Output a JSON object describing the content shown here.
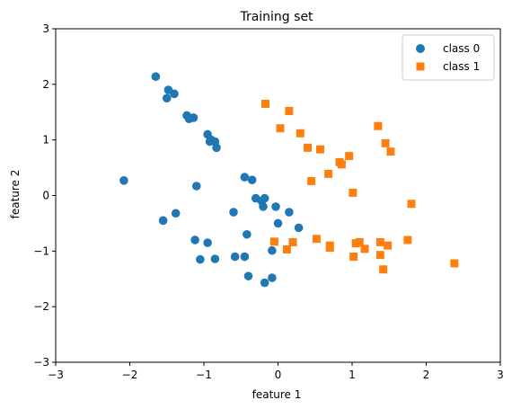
{
  "chart_data": {
    "type": "scatter",
    "title": "Training set",
    "xlabel": "feature 1",
    "ylabel": "feature 2",
    "xlim": [
      -3,
      3
    ],
    "ylim": [
      -3,
      3
    ],
    "xticks": [
      "−3",
      "−2",
      "−1",
      "0",
      "1",
      "2",
      "3"
    ],
    "yticks": [
      "−3",
      "−2",
      "−1",
      "0",
      "1",
      "2",
      "3"
    ],
    "grid": false,
    "legend_position": "top-right",
    "series": [
      {
        "name": "class 0",
        "color": "#1f77b4",
        "marker": "circle",
        "points": [
          [
            -1.65,
            2.14
          ],
          [
            -1.48,
            1.9
          ],
          [
            -1.5,
            1.75
          ],
          [
            -1.4,
            1.83
          ],
          [
            -1.23,
            1.44
          ],
          [
            -1.2,
            1.38
          ],
          [
            -1.14,
            1.4
          ],
          [
            -0.95,
            1.1
          ],
          [
            -0.92,
            0.97
          ],
          [
            -0.9,
            1.0
          ],
          [
            -0.85,
            0.97
          ],
          [
            -0.83,
            0.86
          ],
          [
            -2.08,
            0.27
          ],
          [
            -1.1,
            0.17
          ],
          [
            -0.45,
            0.33
          ],
          [
            -0.35,
            0.28
          ],
          [
            -0.3,
            -0.05
          ],
          [
            -0.22,
            -0.1
          ],
          [
            -0.2,
            -0.2
          ],
          [
            -0.18,
            -0.05
          ],
          [
            -0.03,
            -0.2
          ],
          [
            0.15,
            -0.3
          ],
          [
            0.0,
            -0.5
          ],
          [
            0.28,
            -0.58
          ],
          [
            -1.55,
            -0.45
          ],
          [
            -1.38,
            -0.32
          ],
          [
            -0.6,
            -0.3
          ],
          [
            -1.12,
            -0.8
          ],
          [
            -0.95,
            -0.85
          ],
          [
            -0.42,
            -0.7
          ],
          [
            -1.05,
            -1.15
          ],
          [
            -0.85,
            -1.14
          ],
          [
            -0.58,
            -1.1
          ],
          [
            -0.45,
            -1.1
          ],
          [
            -0.08,
            -0.99
          ],
          [
            -0.4,
            -1.45
          ],
          [
            -0.18,
            -1.57
          ],
          [
            -0.08,
            -1.48
          ]
        ]
      },
      {
        "name": "class 1",
        "color": "#ff7f0e",
        "marker": "square",
        "points": [
          [
            -0.17,
            1.65
          ],
          [
            0.15,
            1.52
          ],
          [
            0.03,
            1.21
          ],
          [
            0.3,
            1.12
          ],
          [
            0.4,
            0.86
          ],
          [
            0.57,
            0.83
          ],
          [
            0.45,
            0.26
          ],
          [
            0.68,
            0.39
          ],
          [
            0.83,
            0.6
          ],
          [
            0.86,
            0.56
          ],
          [
            0.96,
            0.71
          ],
          [
            1.35,
            1.25
          ],
          [
            1.45,
            0.94
          ],
          [
            1.52,
            0.79
          ],
          [
            1.01,
            0.05
          ],
          [
            1.8,
            -0.15
          ],
          [
            -0.05,
            -0.83
          ],
          [
            0.12,
            -0.97
          ],
          [
            0.2,
            -0.84
          ],
          [
            0.52,
            -0.78
          ],
          [
            0.7,
            -0.9
          ],
          [
            0.7,
            -0.94
          ],
          [
            1.02,
            -1.1
          ],
          [
            1.05,
            -0.86
          ],
          [
            1.1,
            -0.84
          ],
          [
            1.17,
            -0.96
          ],
          [
            1.38,
            -0.84
          ],
          [
            1.38,
            -1.07
          ],
          [
            1.42,
            -1.33
          ],
          [
            1.48,
            -0.9
          ],
          [
            1.75,
            -0.8
          ],
          [
            2.38,
            -1.22
          ]
        ]
      }
    ]
  }
}
